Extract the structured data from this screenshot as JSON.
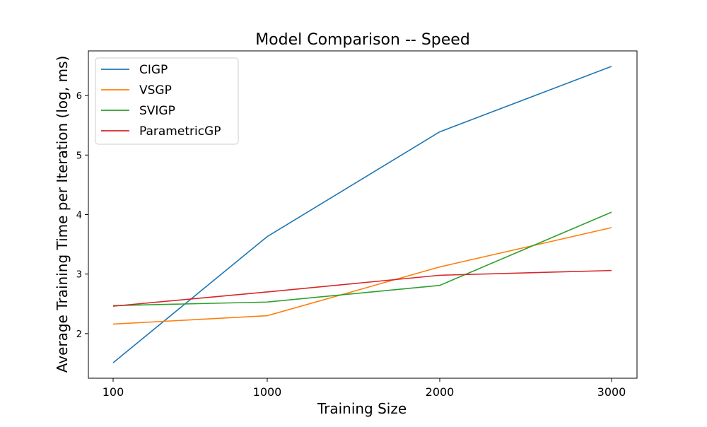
{
  "chart_data": {
    "type": "line",
    "title": "Model Comparison -- Speed",
    "xlabel": "Training Size",
    "ylabel": "Average Training Time per Iteration (log, ms)",
    "categories": [
      "100",
      "1000",
      "2000",
      "3000"
    ],
    "yticks": [
      "2",
      "3",
      "4",
      "5",
      "6"
    ],
    "ylim": [
      1.25,
      6.75
    ],
    "grid": false,
    "legend_position": "upper-left",
    "series": [
      {
        "name": "CIGP",
        "color": "#1f77b4",
        "values": [
          1.51,
          3.63,
          5.39,
          6.49
        ]
      },
      {
        "name": "VSGP",
        "color": "#ff7f0e",
        "values": [
          2.16,
          2.3,
          3.12,
          3.78
        ]
      },
      {
        "name": "SVIGP",
        "color": "#2ca02c",
        "values": [
          2.47,
          2.53,
          2.81,
          4.04
        ]
      },
      {
        "name": "ParametricGP",
        "color": "#d62728",
        "values": [
          2.46,
          2.7,
          2.98,
          3.06
        ]
      }
    ]
  }
}
